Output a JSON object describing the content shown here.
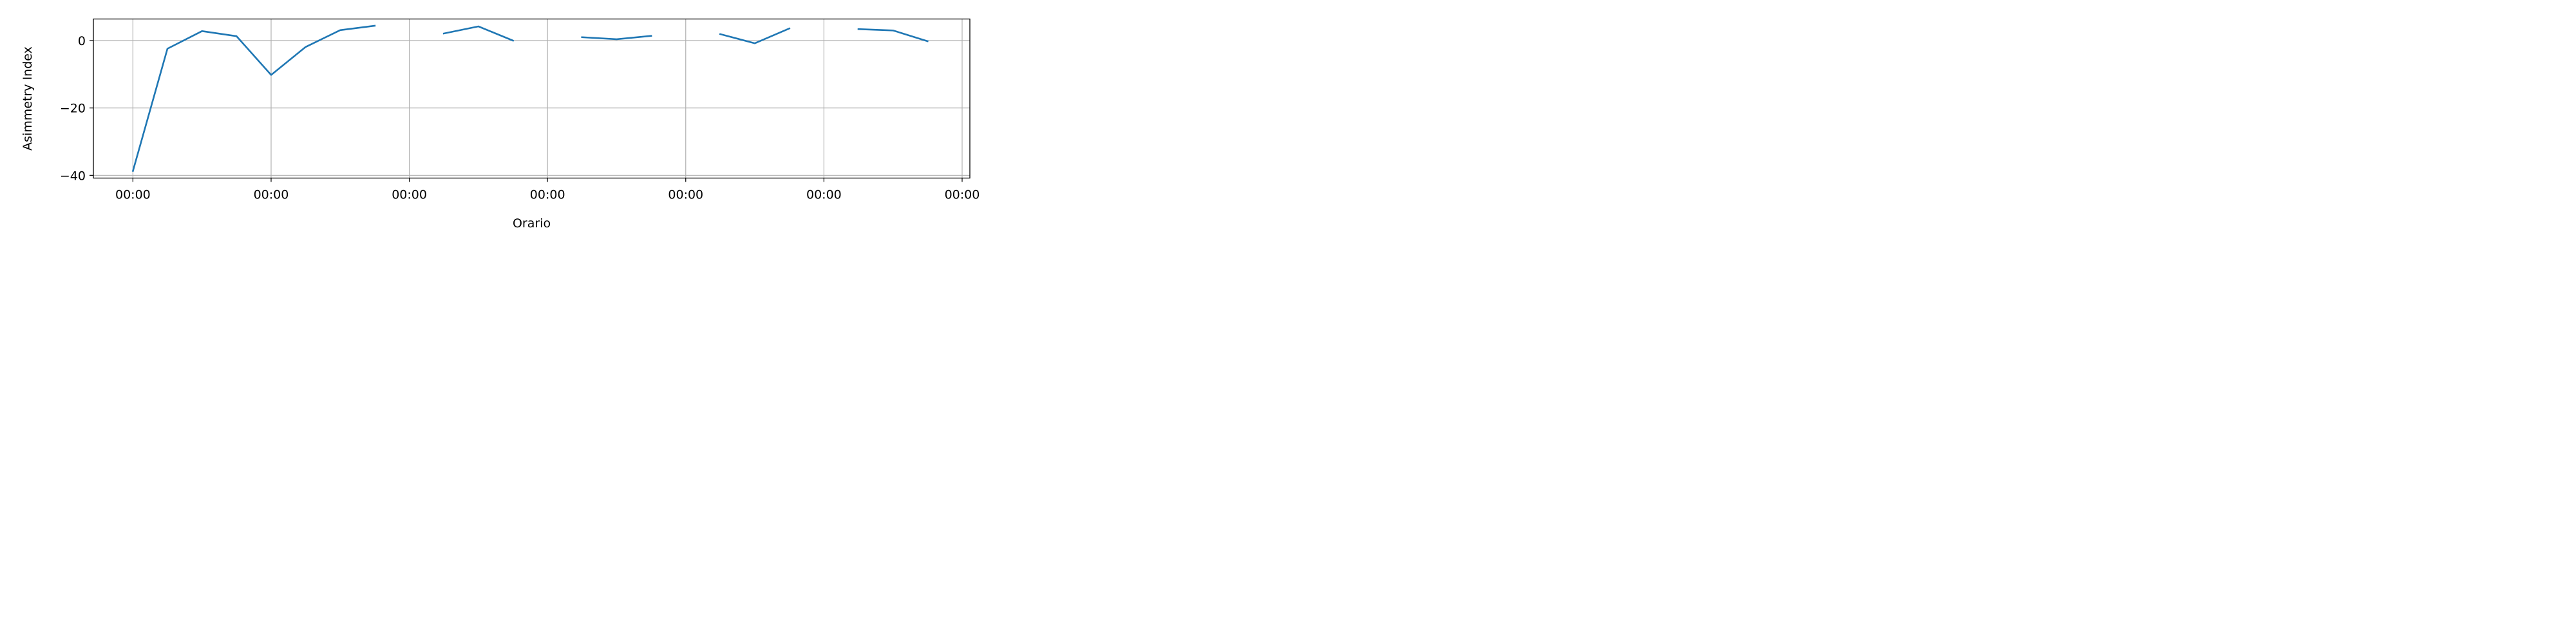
{
  "chart_data": {
    "type": "line",
    "title": "",
    "xlabel": "Orario",
    "ylabel": "Asimmetry Index",
    "x_tick_labels": [
      "00:00",
      "00:00",
      "00:00",
      "00:00",
      "00:00",
      "00:00",
      "00:00"
    ],
    "y_ticks": [
      0,
      -20,
      -40
    ],
    "y_tick_labels": [
      "0",
      "−20",
      "−40"
    ],
    "xlim": [
      -0.143,
      3.028
    ],
    "ylim": [
      -40.8,
      6.4
    ],
    "grid": true,
    "series": [
      {
        "color": "#1f77b4",
        "segments": [
          [
            [
              0.0,
              -38.7
            ],
            [
              0.125,
              -2.4
            ],
            [
              0.25,
              2.8
            ],
            [
              0.375,
              1.3
            ],
            [
              0.5,
              -10.2
            ],
            [
              0.625,
              -1.9
            ],
            [
              0.75,
              3.1
            ],
            [
              0.875,
              4.4
            ]
          ],
          [
            [
              1.125,
              2.1
            ],
            [
              1.25,
              4.2
            ],
            [
              1.375,
              0.0
            ]
          ],
          [
            [
              1.625,
              1.0
            ],
            [
              1.75,
              0.4
            ],
            [
              1.875,
              1.4
            ]
          ],
          [
            [
              2.125,
              1.9
            ],
            [
              2.25,
              -0.8
            ],
            [
              2.375,
              3.6
            ]
          ],
          [
            [
              2.625,
              3.4
            ],
            [
              2.75,
              3.0
            ],
            [
              2.875,
              -0.2
            ]
          ]
        ]
      }
    ]
  }
}
